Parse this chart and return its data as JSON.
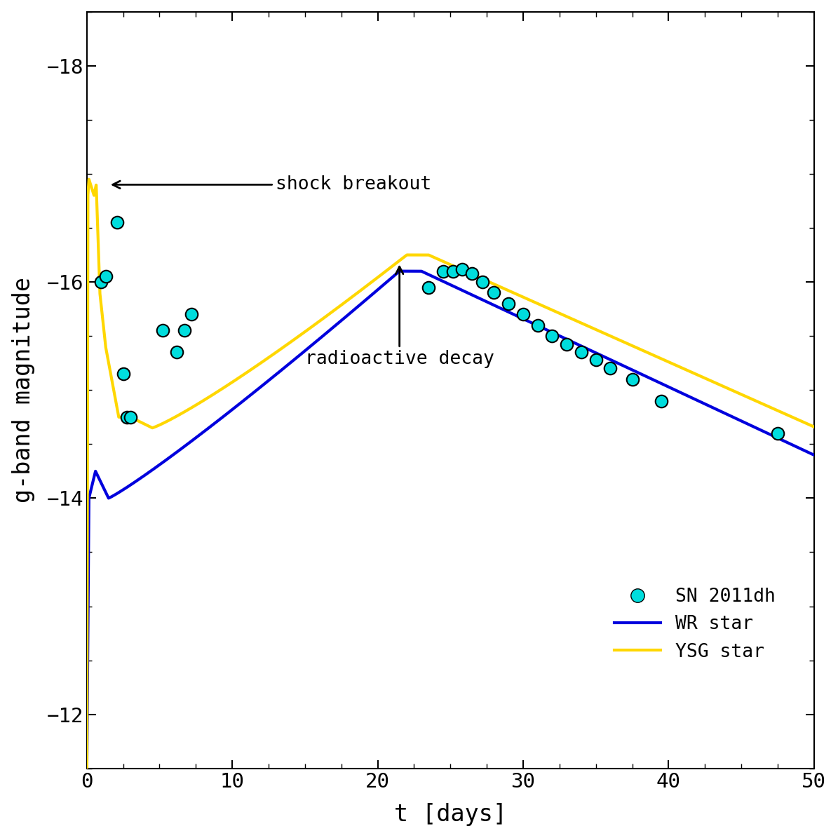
{
  "xlim": [
    0,
    50
  ],
  "ylim_bottom": -11.5,
  "ylim_top": -18.5,
  "xlabel": "t [days]",
  "ylabel": "g-band magnitude",
  "xticks": [
    0,
    10,
    20,
    30,
    40,
    50
  ],
  "yticks": [
    -12,
    -14,
    -16,
    -18
  ],
  "bg_color": "#ffffff",
  "wr_color": "#0000dd",
  "ysg_color": "#ffd700",
  "obs_facecolor": "#00dddd",
  "obs_edgecolor": "#000000",
  "obs_points": [
    [
      1.0,
      -16.0
    ],
    [
      1.3,
      -16.05
    ],
    [
      2.1,
      -16.55
    ],
    [
      2.5,
      -15.15
    ],
    [
      2.75,
      -14.75
    ],
    [
      3.0,
      -14.75
    ],
    [
      5.2,
      -15.55
    ],
    [
      6.2,
      -15.35
    ],
    [
      6.7,
      -15.55
    ],
    [
      7.2,
      -15.7
    ],
    [
      23.5,
      -15.95
    ],
    [
      24.5,
      -16.1
    ],
    [
      25.2,
      -16.1
    ],
    [
      25.8,
      -16.12
    ],
    [
      26.5,
      -16.08
    ],
    [
      27.2,
      -16.0
    ],
    [
      28.0,
      -15.9
    ],
    [
      29.0,
      -15.8
    ],
    [
      30.0,
      -15.7
    ],
    [
      31.0,
      -15.6
    ],
    [
      32.0,
      -15.5
    ],
    [
      33.0,
      -15.42
    ],
    [
      34.0,
      -15.35
    ],
    [
      35.0,
      -15.28
    ],
    [
      36.0,
      -15.2
    ],
    [
      37.5,
      -15.1
    ],
    [
      39.5,
      -14.9
    ],
    [
      47.5,
      -14.6
    ]
  ],
  "shock_text": "shock breakout",
  "decay_text": "radioactive decay",
  "legend_obs": "SN 2011dh",
  "legend_wr": "WR star",
  "legend_ysg": "YSG star"
}
